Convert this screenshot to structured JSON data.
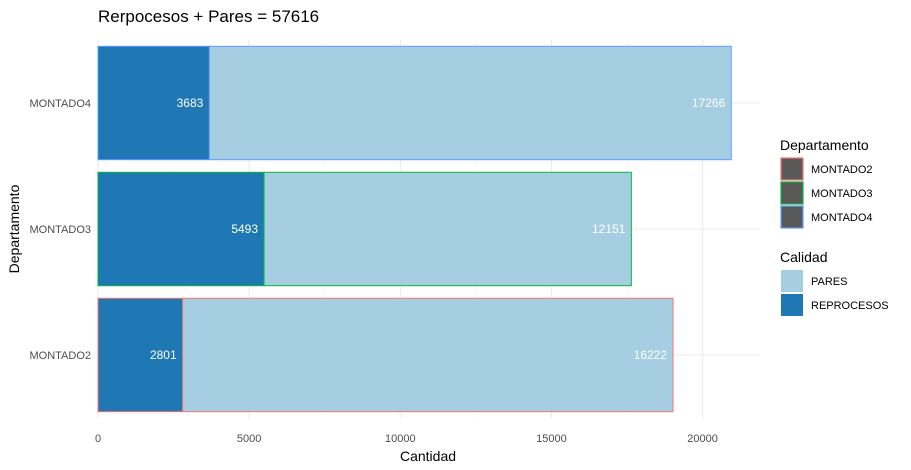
{
  "chart_data": {
    "type": "bar",
    "orientation": "horizontal",
    "stacked": true,
    "title": "Rerpocesos + Pares = 57616",
    "xlabel": "Cantidad",
    "ylabel": "Departamento",
    "categories": [
      "MONTADO2",
      "MONTADO3",
      "MONTADO4"
    ],
    "series": [
      {
        "name": "REPROCESOS",
        "values": [
          2801,
          5493,
          3683
        ],
        "color": "#1f78b4"
      },
      {
        "name": "PARES",
        "values": [
          16222,
          12151,
          17266
        ],
        "color": "#a6cee3"
      }
    ],
    "outline_colors": {
      "MONTADO2": "#f8766d",
      "MONTADO3": "#00ba38",
      "MONTADO4": "#619cff"
    },
    "xlim": [
      0,
      21900
    ],
    "xticks": [
      0,
      5000,
      10000,
      15000,
      20000
    ],
    "grid": true,
    "legends": [
      {
        "title": "Departamento",
        "entries": [
          {
            "label": "MONTADO2",
            "fill": "#595959",
            "border": "#f8766d"
          },
          {
            "label": "MONTADO3",
            "fill": "#595959",
            "border": "#00ba38"
          },
          {
            "label": "MONTADO4",
            "fill": "#595959",
            "border": "#619cff"
          }
        ]
      },
      {
        "title": "Calidad",
        "entries": [
          {
            "label": "PARES",
            "fill": "#a6cee3",
            "border": "none"
          },
          {
            "label": "REPROCESOS",
            "fill": "#1f78b4",
            "border": "none"
          }
        ]
      }
    ],
    "legend_position": "right"
  }
}
